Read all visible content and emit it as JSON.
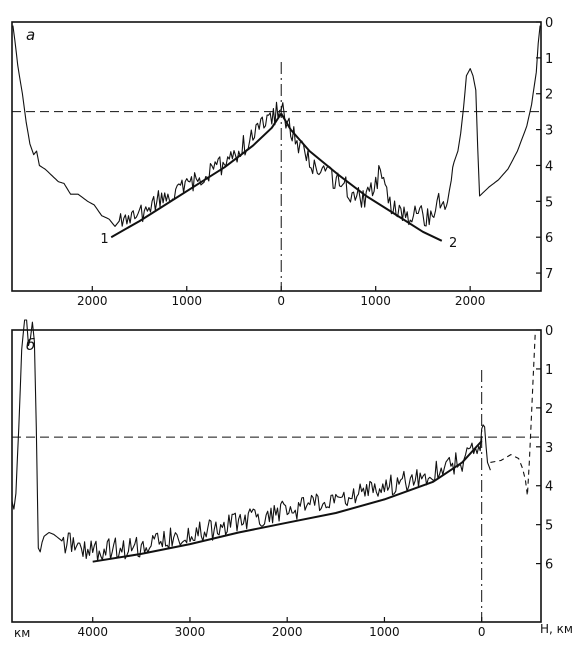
{
  "chart_data": [
    {
      "type": "line",
      "panel_label": "а",
      "xlim": [
        -2850,
        2750
      ],
      "ylim": [
        0,
        7.5
      ],
      "y_inverted": true,
      "xticks": [
        {
          "x": -2000,
          "label": "2000"
        },
        {
          "x": -1000,
          "label": "1000"
        },
        {
          "x": 0,
          "label": "0"
        },
        {
          "x": 1000,
          "label": "1000"
        },
        {
          "x": 2000,
          "label": "2000"
        }
      ],
      "yticks": [
        {
          "y": 0,
          "label": "0"
        },
        {
          "y": 1,
          "label": "1"
        },
        {
          "y": 2,
          "label": "2"
        },
        {
          "y": 3,
          "label": "3"
        },
        {
          "y": 4,
          "label": "4"
        },
        {
          "y": 5,
          "label": "5"
        },
        {
          "y": 6,
          "label": "6"
        },
        {
          "y": 7,
          "label": "7"
        }
      ],
      "ref_hline": 2.5,
      "ref_vline": 0,
      "series": [
        {
          "role": "profile",
          "noise": [
            {
              "from": -1700,
              "to": 1800,
              "amp": 0.3
            }
          ],
          "x": [
            -2840,
            -2820,
            -2790,
            -2740,
            -2700,
            -2660,
            -2620,
            -2590,
            -2560,
            -2500,
            -2420,
            -2360,
            -2300,
            -2230,
            -2150,
            -2050,
            -1980,
            -1900,
            -1820,
            -1760,
            -1700,
            -1600,
            -1500,
            -1400,
            -1300,
            -1200,
            -1100,
            -1000,
            -900,
            -800,
            -700,
            -600,
            -500,
            -400,
            -300,
            -200,
            -100,
            -50,
            0,
            50,
            100,
            150,
            200,
            250,
            300,
            400,
            500,
            600,
            700,
            800,
            900,
            1000,
            1050,
            1100,
            1150,
            1250,
            1350,
            1450,
            1550,
            1650,
            1700,
            1750,
            1760,
            1800,
            1830,
            1870,
            1900,
            1930,
            1960,
            2000,
            2030,
            2060,
            2080,
            2100,
            2200,
            2300,
            2400,
            2500,
            2600,
            2650,
            2700,
            2720,
            2740
          ],
          "y": [
            0.1,
            0.5,
            1.2,
            2.0,
            2.8,
            3.4,
            3.7,
            3.6,
            4.0,
            4.1,
            4.3,
            4.45,
            4.5,
            4.8,
            4.8,
            5.0,
            5.1,
            5.4,
            5.5,
            5.7,
            5.5,
            5.5,
            5.4,
            5.2,
            5.0,
            4.9,
            4.75,
            4.6,
            4.45,
            4.3,
            4.1,
            3.9,
            3.7,
            3.45,
            3.2,
            2.9,
            2.7,
            2.5,
            2.4,
            2.7,
            3.0,
            3.2,
            3.45,
            3.65,
            3.9,
            4.1,
            4.3,
            4.45,
            4.65,
            4.9,
            4.9,
            4.6,
            4.1,
            4.8,
            5.0,
            5.3,
            5.5,
            5.4,
            5.4,
            5.1,
            4.8,
            5.1,
            4.8,
            4.2,
            3.9,
            3.6,
            3.1,
            2.4,
            1.5,
            1.3,
            1.5,
            1.9,
            3.5,
            4.85,
            4.6,
            4.4,
            4.1,
            3.6,
            2.9,
            2.3,
            1.4,
            0.6,
            0.1
          ]
        },
        {
          "role": "model-curve-1",
          "x": [
            -1800,
            -1500,
            -1200,
            -900,
            -600,
            -300,
            -100,
            0
          ],
          "y": [
            6.0,
            5.55,
            5.05,
            4.55,
            4.05,
            3.45,
            2.95,
            2.55
          ]
        },
        {
          "role": "model-curve-2",
          "x": [
            0,
            100,
            300,
            600,
            900,
            1200,
            1500,
            1700
          ],
          "y": [
            2.55,
            3.0,
            3.6,
            4.25,
            4.85,
            5.35,
            5.85,
            6.1
          ]
        }
      ],
      "annotations": [
        {
          "text": "1",
          "x": -1870,
          "y": 6.0
        },
        {
          "text": "2",
          "x": 1820,
          "y": 6.1
        }
      ]
    },
    {
      "type": "line",
      "panel_label": "б",
      "xlim": [
        -4830,
        610
      ],
      "ylim": [
        0,
        7.5
      ],
      "y_inverted": true,
      "x_unit_label": "км",
      "y_axis_title": "H, км",
      "xticks": [
        {
          "x": -4000,
          "label": "4000"
        },
        {
          "x": -3000,
          "label": "3000"
        },
        {
          "x": -2000,
          "label": "2000"
        },
        {
          "x": -1000,
          "label": "1000"
        },
        {
          "x": 0,
          "label": "0"
        }
      ],
      "yticks": [
        {
          "y": 0,
          "label": "0"
        },
        {
          "y": 1,
          "label": "1"
        },
        {
          "y": 2,
          "label": "2"
        },
        {
          "y": 3,
          "label": "3"
        },
        {
          "y": 4,
          "label": "4"
        },
        {
          "y": 5,
          "label": "5"
        },
        {
          "y": 6,
          "label": "6"
        }
      ],
      "ref_hline": 2.75,
      "ref_vline": 0,
      "series": [
        {
          "role": "profile",
          "noise": [
            {
              "from": -4300,
              "to": 30,
              "amp": 0.28
            }
          ],
          "x": [
            -4830,
            -4810,
            -4790,
            -4760,
            -4730,
            -4700,
            -4680,
            -4660,
            -4640,
            -4620,
            -4600,
            -4580,
            -4560,
            -4540,
            -4520,
            -4500,
            -4450,
            -4400,
            -4350,
            -4300,
            -4200,
            -4100,
            -4000,
            -3900,
            -3800,
            -3600,
            -3400,
            -3200,
            -3000,
            -2800,
            -2600,
            -2400,
            -2200,
            -2000,
            -1800,
            -1600,
            -1400,
            -1200,
            -1000,
            -800,
            -600,
            -400,
            -200,
            -100,
            -30,
            0,
            30,
            60,
            90
          ],
          "y": [
            4.4,
            4.6,
            4.2,
            2.5,
            0.5,
            -0.3,
            -0.3,
            0.4,
            0.2,
            -0.2,
            0.3,
            2.5,
            5.6,
            5.7,
            5.45,
            5.3,
            5.2,
            5.25,
            5.35,
            5.45,
            5.5,
            5.6,
            5.65,
            5.7,
            5.6,
            5.6,
            5.5,
            5.35,
            5.25,
            5.15,
            5.0,
            4.85,
            4.75,
            4.65,
            4.55,
            4.4,
            4.3,
            4.2,
            4.05,
            3.9,
            3.75,
            3.55,
            3.35,
            3.15,
            3.0,
            2.7,
            2.6,
            3.4,
            3.6
          ]
        },
        {
          "role": "model-curve",
          "x": [
            -4000,
            -3500,
            -3000,
            -2500,
            -2000,
            -1500,
            -1000,
            -500,
            -200,
            0
          ],
          "y": [
            5.95,
            5.75,
            5.5,
            5.2,
            4.95,
            4.7,
            4.35,
            3.9,
            3.4,
            2.85
          ]
        },
        {
          "role": "dashed-extension",
          "x": [
            90,
            200,
            300,
            380,
            420,
            450,
            470,
            490,
            510,
            530,
            550
          ],
          "y": [
            3.4,
            3.35,
            3.2,
            3.3,
            3.55,
            3.85,
            4.25,
            3.4,
            2.3,
            1.2,
            0.1
          ]
        }
      ]
    }
  ]
}
